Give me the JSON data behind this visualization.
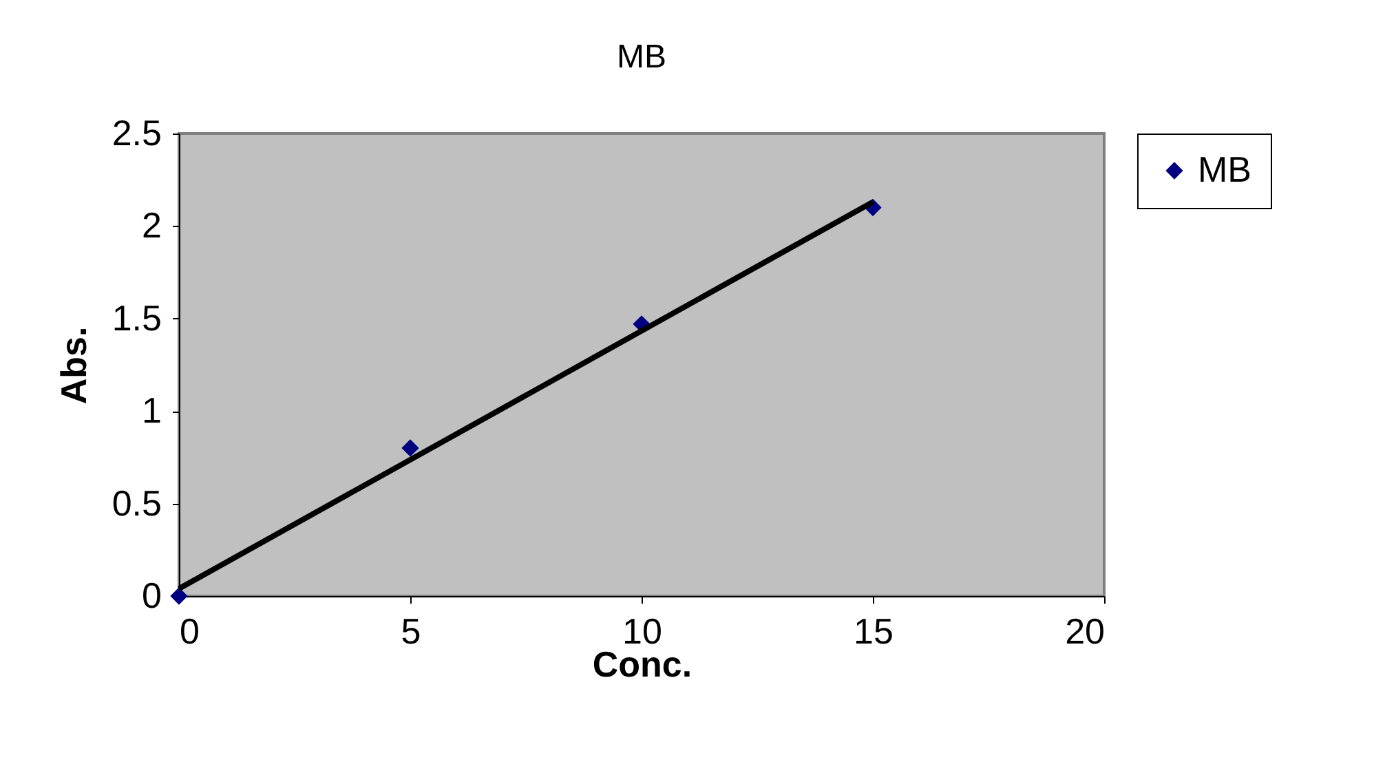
{
  "chart_data": {
    "type": "scatter",
    "title": "MB",
    "xlabel": "Conc.",
    "ylabel": "Abs.",
    "x": [
      0,
      5,
      10,
      15
    ],
    "series": [
      {
        "name": "MB",
        "color": "#000080",
        "values": [
          0,
          0.8,
          1.47,
          2.1
        ]
      },
      {
        "type": "line",
        "marker": "none",
        "color": "#000000",
        "x": [
          0,
          15
        ],
        "values": [
          0.04,
          2.13
        ]
      }
    ],
    "xlim": [
      0,
      20
    ],
    "xticks": [
      0,
      5,
      10,
      15,
      20
    ],
    "ylim": [
      0,
      2.5
    ],
    "yticks": [
      0,
      0.5,
      1,
      1.5,
      2,
      2.5
    ],
    "marker": "diamond",
    "legend": "top right",
    "grid": false
  }
}
